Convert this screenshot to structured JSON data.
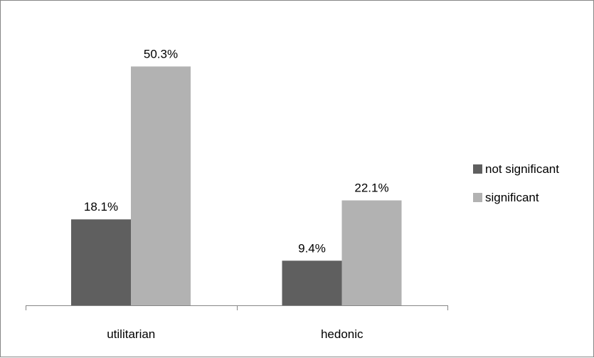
{
  "chart_data": {
    "type": "bar",
    "categories": [
      "utilitarian",
      "hedonic"
    ],
    "series": [
      {
        "name": "not significant",
        "values": [
          18.1,
          9.4
        ],
        "labels": [
          "18.1%",
          "9.4%"
        ],
        "color": "#5f5f5f"
      },
      {
        "name": "significant",
        "values": [
          50.3,
          22.1
        ],
        "labels": [
          "50.3%",
          "22.1%"
        ],
        "color": "#b2b2b2"
      }
    ],
    "unit": "%",
    "ylim": [
      0,
      60
    ],
    "grid": false,
    "legend_position": "right",
    "axis_color": "#868686"
  }
}
